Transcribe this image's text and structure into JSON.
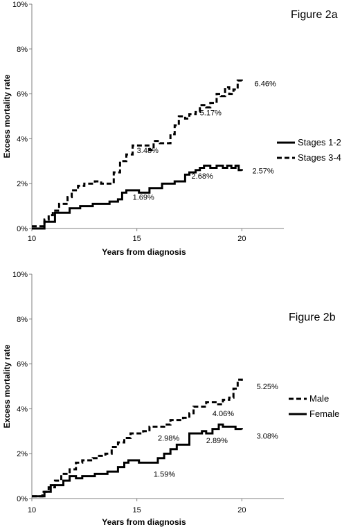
{
  "chart_data": [
    {
      "type": "line",
      "title": "Figure 2a",
      "xlabel": "Years from diagnosis",
      "ylabel": "Excess mortality rate",
      "xlim": [
        10,
        22
      ],
      "ylim": [
        0,
        10
      ],
      "x_ticks": [
        "10",
        "15",
        "20"
      ],
      "y_ticks": [
        "0%",
        "2%",
        "4%",
        "6%",
        "8%",
        "10%"
      ],
      "grid": false,
      "legend_position": "right",
      "series": [
        {
          "name": "Stages 1-2",
          "style": "solid",
          "points": [
            [
              10,
              0.0
            ],
            [
              10.4,
              0.0
            ],
            [
              10.6,
              0.3
            ],
            [
              10.9,
              0.3
            ],
            [
              11.1,
              0.7
            ],
            [
              11.6,
              0.7
            ],
            [
              11.8,
              0.9
            ],
            [
              12.1,
              0.9
            ],
            [
              12.3,
              1.0
            ],
            [
              12.6,
              1.0
            ],
            [
              12.9,
              1.1
            ],
            [
              13.4,
              1.1
            ],
            [
              13.7,
              1.2
            ],
            [
              14.1,
              1.3
            ],
            [
              14.3,
              1.6
            ],
            [
              14.5,
              1.7
            ],
            [
              15.0,
              1.7
            ],
            [
              15.1,
              1.6
            ],
            [
              15.4,
              1.6
            ],
            [
              15.6,
              1.8
            ],
            [
              15.9,
              1.8
            ],
            [
              16.2,
              2.0
            ],
            [
              16.6,
              2.0
            ],
            [
              16.8,
              2.1
            ],
            [
              17.0,
              2.1
            ],
            [
              17.3,
              2.4
            ],
            [
              17.5,
              2.5
            ],
            [
              17.8,
              2.6
            ],
            [
              18.0,
              2.7
            ],
            [
              18.2,
              2.8
            ],
            [
              18.5,
              2.7
            ],
            [
              18.8,
              2.8
            ],
            [
              19.1,
              2.7
            ],
            [
              19.3,
              2.8
            ],
            [
              19.5,
              2.7
            ],
            [
              19.7,
              2.8
            ],
            [
              19.85,
              2.6
            ],
            [
              20.0,
              2.57
            ]
          ]
        },
        {
          "name": "Stages 3-4",
          "style": "dashed",
          "points": [
            [
              10,
              0.1
            ],
            [
              10.4,
              0.1
            ],
            [
              10.6,
              0.4
            ],
            [
              10.8,
              0.6
            ],
            [
              11.0,
              0.8
            ],
            [
              11.3,
              1.1
            ],
            [
              11.5,
              1.1
            ],
            [
              11.7,
              1.4
            ],
            [
              11.9,
              1.7
            ],
            [
              12.2,
              1.9
            ],
            [
              12.5,
              2.0
            ],
            [
              12.8,
              2.0
            ],
            [
              13.0,
              2.1
            ],
            [
              13.3,
              2.0
            ],
            [
              13.6,
              2.0
            ],
            [
              13.9,
              2.5
            ],
            [
              14.2,
              3.0
            ],
            [
              14.5,
              3.3
            ],
            [
              14.8,
              3.7
            ],
            [
              15.2,
              3.7
            ],
            [
              15.6,
              3.5
            ],
            [
              15.8,
              3.9
            ],
            [
              16.1,
              3.8
            ],
            [
              16.3,
              3.8
            ],
            [
              16.6,
              4.2
            ],
            [
              16.8,
              4.6
            ],
            [
              17.0,
              5.0
            ],
            [
              17.3,
              4.9
            ],
            [
              17.5,
              5.1
            ],
            [
              17.8,
              5.2
            ],
            [
              18.0,
              5.5
            ],
            [
              18.3,
              5.4
            ],
            [
              18.5,
              5.6
            ],
            [
              18.8,
              6.0
            ],
            [
              19.0,
              5.9
            ],
            [
              19.2,
              6.3
            ],
            [
              19.4,
              6.0
            ],
            [
              19.6,
              6.2
            ],
            [
              19.8,
              6.6
            ],
            [
              20.0,
              6.46
            ]
          ]
        }
      ],
      "annotations": [
        {
          "label": "6.46%",
          "x": 20.6,
          "y": 6.46
        },
        {
          "label": "5.17%",
          "x": 18.0,
          "y": 5.17
        },
        {
          "label": "3.48%",
          "x": 15.0,
          "y": 3.48
        },
        {
          "label": "2.57%",
          "x": 20.5,
          "y": 2.57
        },
        {
          "label": "2.68%",
          "x": 17.6,
          "y": 2.35
        },
        {
          "label": "1.69%",
          "x": 14.8,
          "y": 1.4
        }
      ]
    },
    {
      "type": "line",
      "title": "Figure 2b",
      "xlabel": "Years from diagnosis",
      "ylabel": "Excess mortality rate",
      "xlim": [
        10,
        22
      ],
      "ylim": [
        0,
        10
      ],
      "x_ticks": [
        "10",
        "15",
        "20"
      ],
      "y_ticks": [
        "0%",
        "2%",
        "4%",
        "6%",
        "8%",
        "10%"
      ],
      "grid": false,
      "legend_position": "right",
      "series": [
        {
          "name": "Male",
          "style": "dashed",
          "points": [
            [
              10,
              0.1
            ],
            [
              10.3,
              0.1
            ],
            [
              10.5,
              0.3
            ],
            [
              10.8,
              0.5
            ],
            [
              11.1,
              0.8
            ],
            [
              11.4,
              1.1
            ],
            [
              11.8,
              1.3
            ],
            [
              12.1,
              1.6
            ],
            [
              12.4,
              1.7
            ],
            [
              12.7,
              1.7
            ],
            [
              12.9,
              1.8
            ],
            [
              13.2,
              1.9
            ],
            [
              13.5,
              2.0
            ],
            [
              13.8,
              2.3
            ],
            [
              14.1,
              2.5
            ],
            [
              14.4,
              2.7
            ],
            [
              14.7,
              2.9
            ],
            [
              15.0,
              2.9
            ],
            [
              15.3,
              3.0
            ],
            [
              15.6,
              3.2
            ],
            [
              16.0,
              3.2
            ],
            [
              16.3,
              3.3
            ],
            [
              16.6,
              3.5
            ],
            [
              16.9,
              3.5
            ],
            [
              17.2,
              3.6
            ],
            [
              17.5,
              3.8
            ],
            [
              17.7,
              4.1
            ],
            [
              18.0,
              4.1
            ],
            [
              18.3,
              4.3
            ],
            [
              18.6,
              4.3
            ],
            [
              18.8,
              4.2
            ],
            [
              19.1,
              4.4
            ],
            [
              19.4,
              4.5
            ],
            [
              19.6,
              4.9
            ],
            [
              19.8,
              5.3
            ],
            [
              20.0,
              5.25
            ]
          ]
        },
        {
          "name": "Female",
          "style": "solid",
          "points": [
            [
              10,
              0.1
            ],
            [
              10.4,
              0.1
            ],
            [
              10.6,
              0.3
            ],
            [
              10.9,
              0.6
            ],
            [
              11.2,
              0.6
            ],
            [
              11.5,
              0.8
            ],
            [
              11.8,
              1.0
            ],
            [
              12.1,
              0.9
            ],
            [
              12.4,
              1.0
            ],
            [
              12.7,
              1.0
            ],
            [
              13.0,
              1.1
            ],
            [
              13.3,
              1.1
            ],
            [
              13.6,
              1.2
            ],
            [
              13.9,
              1.2
            ],
            [
              14.1,
              1.4
            ],
            [
              14.4,
              1.6
            ],
            [
              14.6,
              1.7
            ],
            [
              14.9,
              1.7
            ],
            [
              15.1,
              1.6
            ],
            [
              15.5,
              1.6
            ],
            [
              15.8,
              1.6
            ],
            [
              16.0,
              1.8
            ],
            [
              16.3,
              2.0
            ],
            [
              16.6,
              2.2
            ],
            [
              16.9,
              2.4
            ],
            [
              17.2,
              2.4
            ],
            [
              17.5,
              2.9
            ],
            [
              17.8,
              2.9
            ],
            [
              18.1,
              3.0
            ],
            [
              18.3,
              2.9
            ],
            [
              18.6,
              3.1
            ],
            [
              18.9,
              3.3
            ],
            [
              19.1,
              3.2
            ],
            [
              19.4,
              3.2
            ],
            [
              19.7,
              3.1
            ],
            [
              20.0,
              3.08
            ]
          ]
        }
      ],
      "annotations": [
        {
          "label": "5.25%",
          "x": 20.7,
          "y": 5.0
        },
        {
          "label": "4.06%",
          "x": 18.6,
          "y": 3.8
        },
        {
          "label": "2.98%",
          "x": 16.0,
          "y": 2.7
        },
        {
          "label": "2.89%",
          "x": 18.3,
          "y": 2.6
        },
        {
          "label": "3.08%",
          "x": 20.7,
          "y": 2.8
        },
        {
          "label": "1.59%",
          "x": 15.8,
          "y": 1.1
        }
      ]
    }
  ]
}
